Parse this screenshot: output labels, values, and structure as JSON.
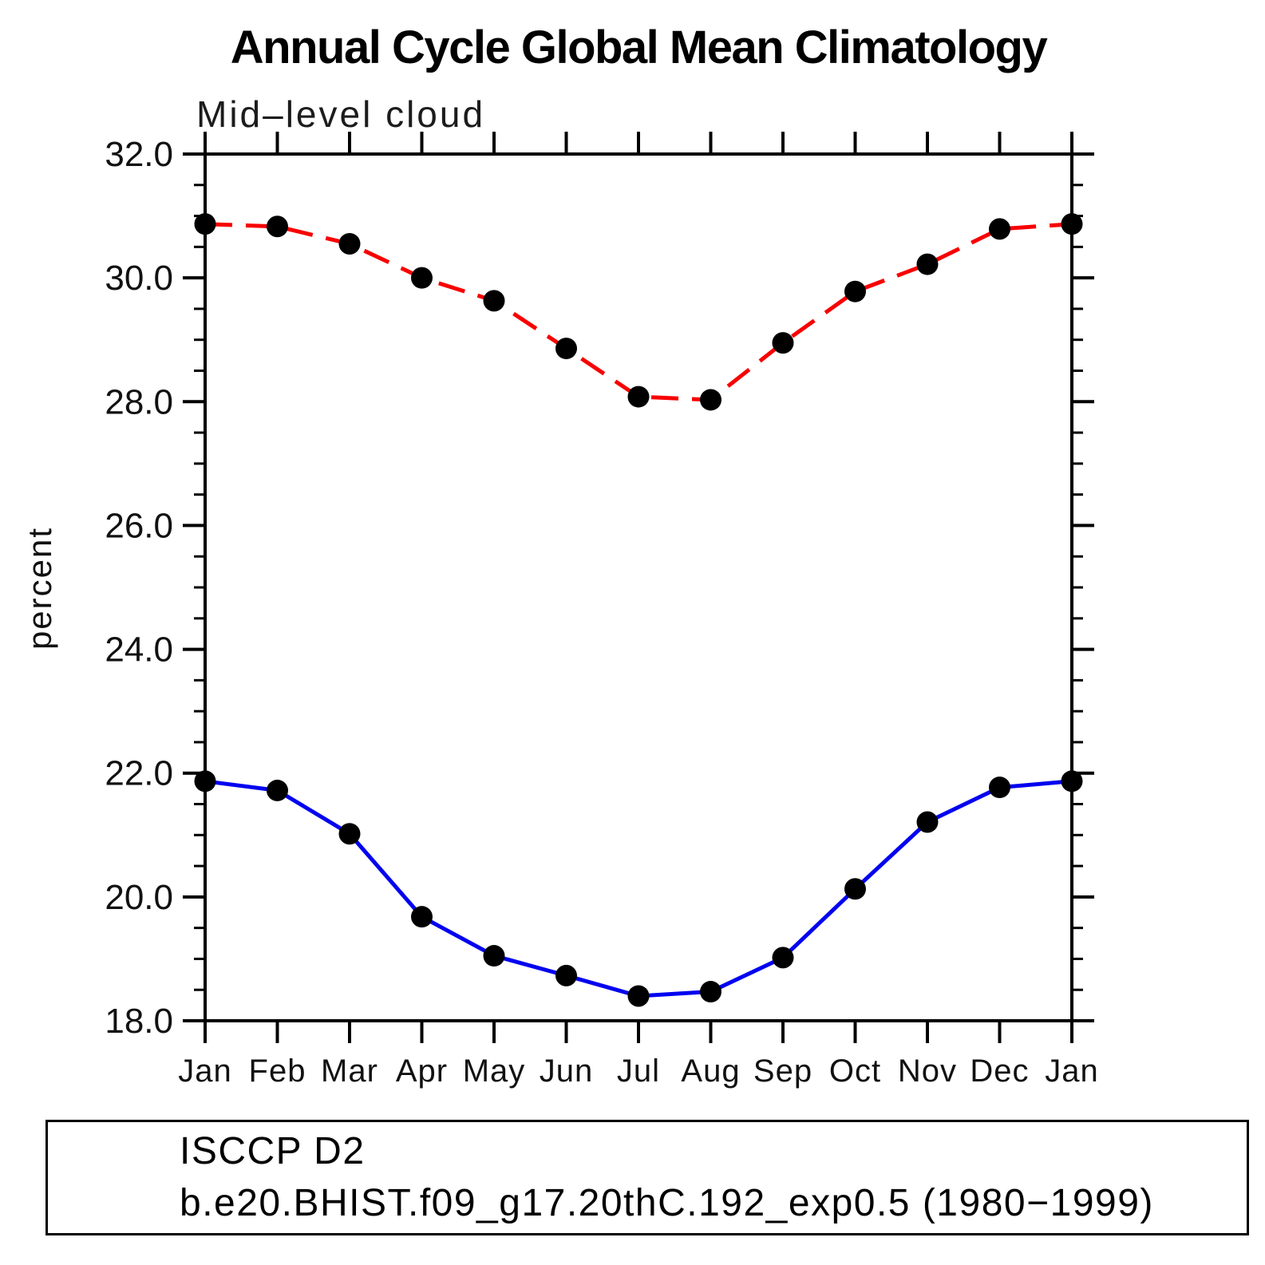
{
  "chart_data": {
    "type": "line",
    "title": "Annual Cycle Global Mean Climatology",
    "subtitle": "Mid–level cloud",
    "ylabel": "percent",
    "xlabel": "",
    "categories": [
      "Jan",
      "Feb",
      "Mar",
      "Apr",
      "May",
      "Jun",
      "Jul",
      "Aug",
      "Sep",
      "Oct",
      "Nov",
      "Dec",
      "Jan"
    ],
    "ylim": [
      18.0,
      32.0
    ],
    "ytick_step": 2.0,
    "ytick_minor_step": 0.5,
    "ytick_labels": [
      "18.0",
      "20.0",
      "22.0",
      "24.0",
      "26.0",
      "28.0",
      "30.0",
      "32.0"
    ],
    "grid": false,
    "legend_position": "bottom-left-box",
    "axis_color": "#000000",
    "marker_color": "#000000",
    "series": [
      {
        "name": "ISCCP D2",
        "color": "#0202f0",
        "style": "solid",
        "marker": "circle",
        "values": [
          21.87,
          21.72,
          21.02,
          19.68,
          19.05,
          18.73,
          18.4,
          18.47,
          19.02,
          20.13,
          21.21,
          21.77,
          21.87
        ]
      },
      {
        "name": "b.e20.BHIST.f09_g17.20thC.192_exp0.5 (1980−1999)",
        "color": "#f80000",
        "style": "dashed",
        "marker": "circle",
        "values": [
          30.87,
          30.83,
          30.55,
          30.0,
          29.63,
          28.86,
          28.08,
          28.03,
          28.95,
          29.78,
          30.22,
          30.79,
          30.87
        ]
      }
    ]
  }
}
